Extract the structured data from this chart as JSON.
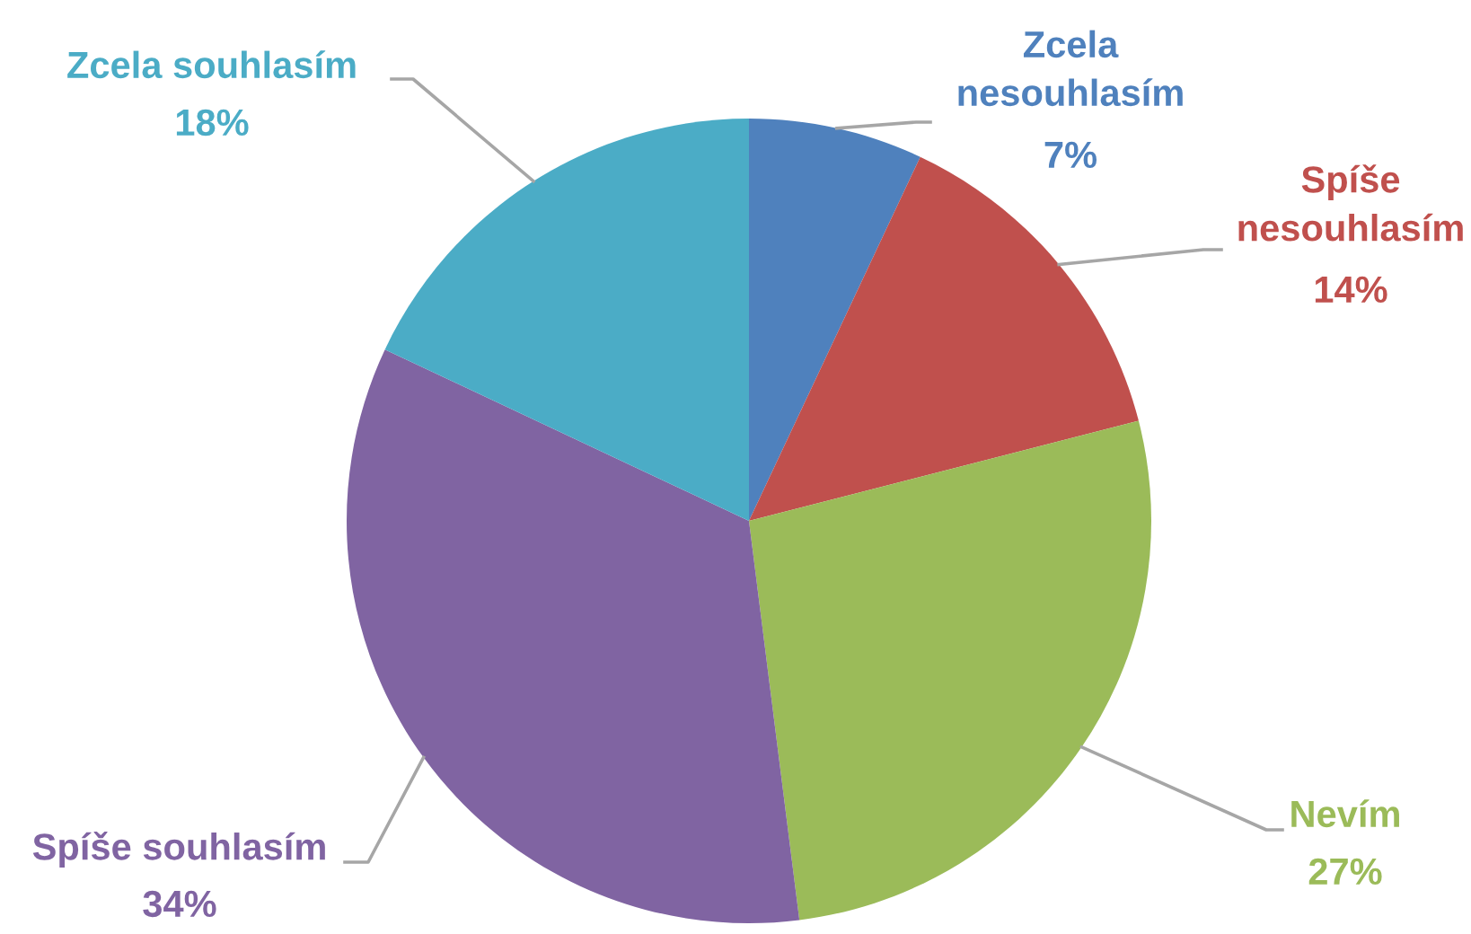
{
  "chart_data": {
    "type": "pie",
    "categories": [
      "Zcela nesouhlasím",
      "Spíše nesouhlasím",
      "Nevím",
      "Spíše souhlasím",
      "Zcela souhlasím"
    ],
    "values": [
      7,
      14,
      27,
      34,
      18
    ],
    "colors": [
      "#4f81bd",
      "#c0504d",
      "#9bbb59",
      "#8064a2",
      "#4bacc6"
    ],
    "value_labels": [
      "7%",
      "14%",
      "27%",
      "34%",
      "18%"
    ]
  }
}
